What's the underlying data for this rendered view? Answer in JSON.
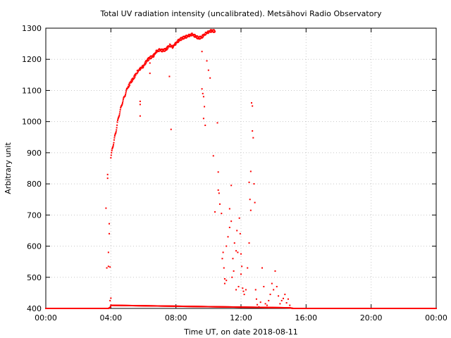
{
  "chart_data": {
    "type": "scatter",
    "title": "Total UV radiation intensity (uncalibrated). Metsähovi Radio Observatory",
    "xlabel": "Time UT, on date 2018-08-11",
    "ylabel": "Arbitrary unit",
    "x_unit": "hours UT",
    "xlim": [
      0,
      24
    ],
    "ylim": [
      400,
      1300
    ],
    "x_ticks": [
      {
        "value": 0,
        "label": "00:00"
      },
      {
        "value": 4,
        "label": "04:00"
      },
      {
        "value": 8,
        "label": "08:00"
      },
      {
        "value": 12,
        "label": "12:00"
      },
      {
        "value": 16,
        "label": "16:00"
      },
      {
        "value": 20,
        "label": "20:00"
      },
      {
        "value": 24,
        "label": "00:00"
      }
    ],
    "y_ticks": [
      400,
      500,
      600,
      700,
      800,
      900,
      1000,
      1100,
      1200,
      1300
    ],
    "grid": true,
    "marker_color": "#ff0000",
    "series": [
      {
        "baseline": [
          [
            0.0,
            400
          ],
          [
            3.85,
            400
          ],
          [
            3.95,
            403
          ],
          [
            4.0,
            410
          ],
          [
            15.0,
            402
          ],
          [
            15.2,
            400
          ],
          [
            24.0,
            400
          ]
        ],
        "main_curve": [
          [
            4.0,
            885
          ],
          [
            4.1,
            915
          ],
          [
            4.2,
            940
          ],
          [
            4.3,
            965
          ],
          [
            4.4,
            995
          ],
          [
            4.5,
            1020
          ],
          [
            4.6,
            1040
          ],
          [
            4.7,
            1060
          ],
          [
            4.8,
            1075
          ],
          [
            4.9,
            1090
          ],
          [
            5.0,
            1105
          ],
          [
            5.2,
            1125
          ],
          [
            5.4,
            1140
          ],
          [
            5.6,
            1158
          ],
          [
            5.8,
            1170
          ],
          [
            6.0,
            1178
          ],
          [
            6.2,
            1195
          ],
          [
            6.4,
            1205
          ],
          [
            6.6,
            1210
          ],
          [
            6.8,
            1225
          ],
          [
            7.0,
            1230
          ],
          [
            7.2,
            1228
          ],
          [
            7.4,
            1232
          ],
          [
            7.6,
            1245
          ],
          [
            7.8,
            1240
          ],
          [
            8.0,
            1252
          ],
          [
            8.2,
            1262
          ],
          [
            8.4,
            1268
          ],
          [
            8.6,
            1272
          ],
          [
            8.8,
            1276
          ],
          [
            9.0,
            1280
          ],
          [
            9.2,
            1274
          ],
          [
            9.4,
            1268
          ],
          [
            9.6,
            1272
          ],
          [
            9.8,
            1282
          ],
          [
            10.0,
            1288
          ],
          [
            10.2,
            1292
          ],
          [
            10.4,
            1290
          ]
        ],
        "scatter_points": [
          [
            3.7,
            722
          ],
          [
            3.75,
            530
          ],
          [
            3.8,
            818
          ],
          [
            3.8,
            830
          ],
          [
            3.85,
            580
          ],
          [
            3.85,
            535
          ],
          [
            3.9,
            672
          ],
          [
            3.9,
            640
          ],
          [
            3.95,
            533
          ],
          [
            3.95,
            425
          ],
          [
            4.0,
            433
          ],
          [
            5.8,
            1065
          ],
          [
            5.8,
            1055
          ],
          [
            5.8,
            1018
          ],
          [
            6.4,
            1155
          ],
          [
            6.4,
            1188
          ],
          [
            7.6,
            1145
          ],
          [
            7.7,
            975
          ],
          [
            9.6,
            1105
          ],
          [
            9.65,
            1090
          ],
          [
            9.7,
            1080
          ],
          [
            9.75,
            1048
          ],
          [
            9.7,
            1010
          ],
          [
            9.8,
            988
          ],
          [
            9.6,
            1225
          ],
          [
            9.9,
            1195
          ],
          [
            10.0,
            1165
          ],
          [
            10.1,
            1140
          ],
          [
            10.3,
            890
          ],
          [
            10.4,
            710
          ],
          [
            10.55,
            996
          ],
          [
            10.6,
            838
          ],
          [
            10.6,
            780
          ],
          [
            10.65,
            770
          ],
          [
            10.7,
            735
          ],
          [
            10.8,
            705
          ],
          [
            10.85,
            560
          ],
          [
            10.9,
            580
          ],
          [
            10.95,
            530
          ],
          [
            11.0,
            495
          ],
          [
            11.0,
            480
          ],
          [
            11.1,
            490
          ],
          [
            11.1,
            600
          ],
          [
            11.2,
            630
          ],
          [
            11.3,
            720
          ],
          [
            11.3,
            660
          ],
          [
            11.4,
            795
          ],
          [
            11.4,
            680
          ],
          [
            11.45,
            500
          ],
          [
            11.5,
            560
          ],
          [
            11.55,
            520
          ],
          [
            11.6,
            610
          ],
          [
            11.7,
            585
          ],
          [
            11.7,
            460
          ],
          [
            11.75,
            650
          ],
          [
            11.8,
            580
          ],
          [
            11.85,
            470
          ],
          [
            11.9,
            690
          ],
          [
            11.95,
            640
          ],
          [
            12.0,
            575
          ],
          [
            12.0,
            510
          ],
          [
            12.05,
            535
          ],
          [
            12.1,
            465
          ],
          [
            12.15,
            455
          ],
          [
            12.2,
            445
          ],
          [
            12.3,
            460
          ],
          [
            12.4,
            530
          ],
          [
            12.5,
            610
          ],
          [
            12.5,
            805
          ],
          [
            12.55,
            750
          ],
          [
            12.6,
            840
          ],
          [
            12.6,
            715
          ],
          [
            12.65,
            1060
          ],
          [
            12.7,
            1050
          ],
          [
            12.7,
            970
          ],
          [
            12.75,
            948
          ],
          [
            12.8,
            800
          ],
          [
            12.85,
            740
          ],
          [
            12.9,
            460
          ],
          [
            12.95,
            430
          ],
          [
            13.0,
            412
          ],
          [
            13.1,
            405
          ],
          [
            13.2,
            420
          ],
          [
            13.3,
            530
          ],
          [
            13.4,
            470
          ],
          [
            13.5,
            415
          ],
          [
            13.6,
            410
          ],
          [
            13.7,
            425
          ],
          [
            13.8,
            445
          ],
          [
            13.9,
            480
          ],
          [
            14.0,
            460
          ],
          [
            14.1,
            520
          ],
          [
            14.2,
            470
          ],
          [
            14.3,
            440
          ],
          [
            14.4,
            415
          ],
          [
            14.5,
            425
          ],
          [
            14.6,
            432
          ],
          [
            14.7,
            445
          ],
          [
            14.8,
            418
          ],
          [
            14.9,
            430
          ],
          [
            15.0,
            410
          ]
        ]
      }
    ]
  }
}
